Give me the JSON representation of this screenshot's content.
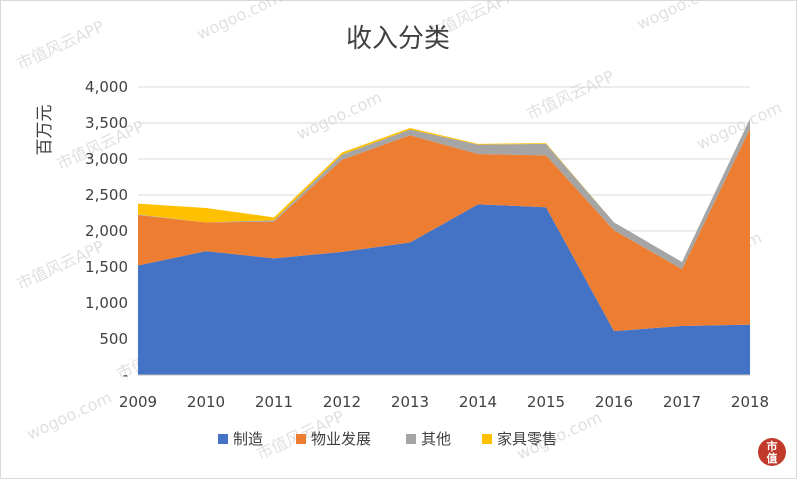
{
  "chart_data": {
    "type": "area",
    "stacked": true,
    "title": "收入分类",
    "ylabel": "百万元",
    "xlabel": "",
    "categories": [
      "2009",
      "2010",
      "2011",
      "2012",
      "2013",
      "2014",
      "2015",
      "2016",
      "2017",
      "2018"
    ],
    "ylim": [
      0,
      4000
    ],
    "yticks": [
      0,
      500,
      1000,
      1500,
      2000,
      2500,
      3000,
      3500,
      4000
    ],
    "ytick_labels": [
      "-",
      "500",
      "1,000",
      "1,500",
      "2,000",
      "2,500",
      "3,000",
      "3,500",
      "4,000"
    ],
    "grid": true,
    "legend_position": "bottom",
    "series": [
      {
        "name": "制造",
        "color": "#4472C4",
        "values": [
          1520,
          1720,
          1620,
          1710,
          1840,
          2370,
          2330,
          610,
          680,
          700
        ]
      },
      {
        "name": "物业发展",
        "color": "#ED7D31",
        "values": [
          700,
          400,
          510,
          1280,
          1490,
          700,
          720,
          1400,
          790,
          2720
        ]
      },
      {
        "name": "其他",
        "color": "#A5A5A5",
        "values": [
          10,
          0,
          20,
          70,
          80,
          130,
          160,
          110,
          100,
          140
        ]
      },
      {
        "name": "家具零售",
        "color": "#FFC000",
        "values": [
          150,
          200,
          40,
          30,
          20,
          10,
          10,
          0,
          0,
          0
        ]
      }
    ]
  },
  "watermark": {
    "text": "市值风云APP",
    "domain": "wogoo.com"
  },
  "seal": {
    "line1": "市",
    "line2": "值",
    "color": "#C0392B"
  }
}
